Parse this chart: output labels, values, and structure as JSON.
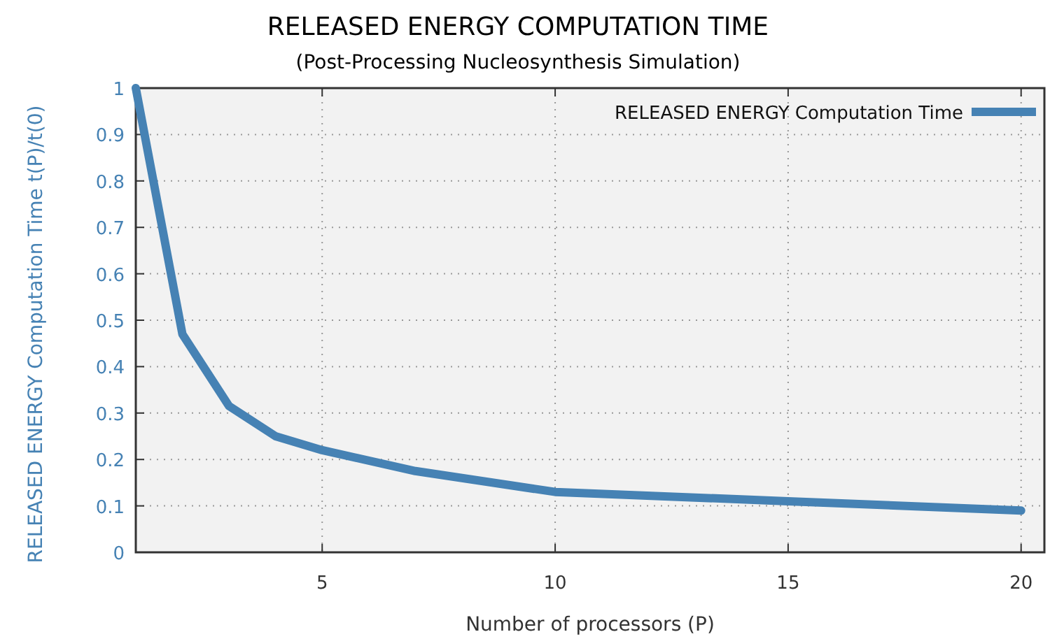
{
  "chart_data": {
    "type": "line",
    "title": "RELEASED ENERGY COMPUTATION TIME",
    "subtitle": "(Post-Processing Nucleosynthesis Simulation)",
    "xlabel": "Number of processors (P)",
    "ylabel": "RELEASED ENERGY Computation Time   t(P)/t(0)",
    "x": [
      1,
      2,
      3,
      4,
      5,
      7,
      10,
      15,
      20
    ],
    "series": [
      {
        "name": "RELEASED ENERGY Computation Time",
        "color": "#4682b4",
        "values": [
          1,
          0.47,
          0.315,
          0.25,
          0.22,
          0.175,
          0.13,
          0.11,
          0.09
        ]
      }
    ],
    "xlim": [
      1,
      20.5
    ],
    "xticks": [
      5,
      10,
      15,
      20
    ],
    "ylim": [
      0,
      1
    ],
    "yticks": [
      0,
      0.1,
      0.2,
      0.3,
      0.4,
      0.5,
      0.6,
      0.7,
      0.8,
      0.9,
      1
    ],
    "grid": true,
    "legend": "top right",
    "marker": "none",
    "line_style": "solid"
  }
}
